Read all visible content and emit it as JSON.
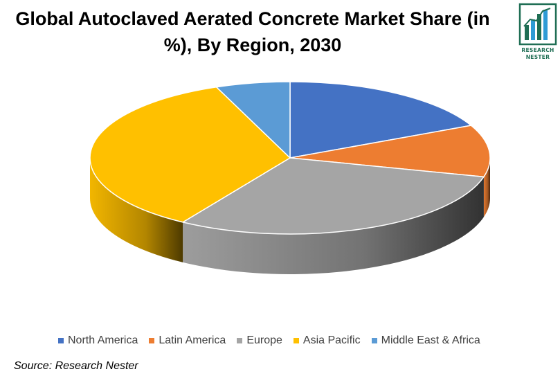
{
  "header": {
    "title_line1": "Global Autoclaved Aerated Concrete Market Share (in",
    "title_line2": "%), By Region, 2030"
  },
  "logo": {
    "icon": "bar-chart-logo-icon",
    "line1": "RESEARCH",
    "line2": "NESTER",
    "color": "#1f6e54",
    "accent": "#2e9bd6"
  },
  "chart_data": {
    "type": "pie",
    "title": "Global Autoclaved Aerated Concrete Market Share (in %), By Region, 2030",
    "categories": [
      "North America",
      "Latin America",
      "Europe",
      "Asia Pacific",
      "Middle East & Africa"
    ],
    "values": [
      18,
      11,
      30,
      35,
      6
    ],
    "colors": [
      "#4472c4",
      "#ed7d31",
      "#a5a5a5",
      "#ffc000",
      "#5b9bd5"
    ],
    "legend_position": "bottom"
  },
  "footer": {
    "source": "Source: Research Nester"
  }
}
